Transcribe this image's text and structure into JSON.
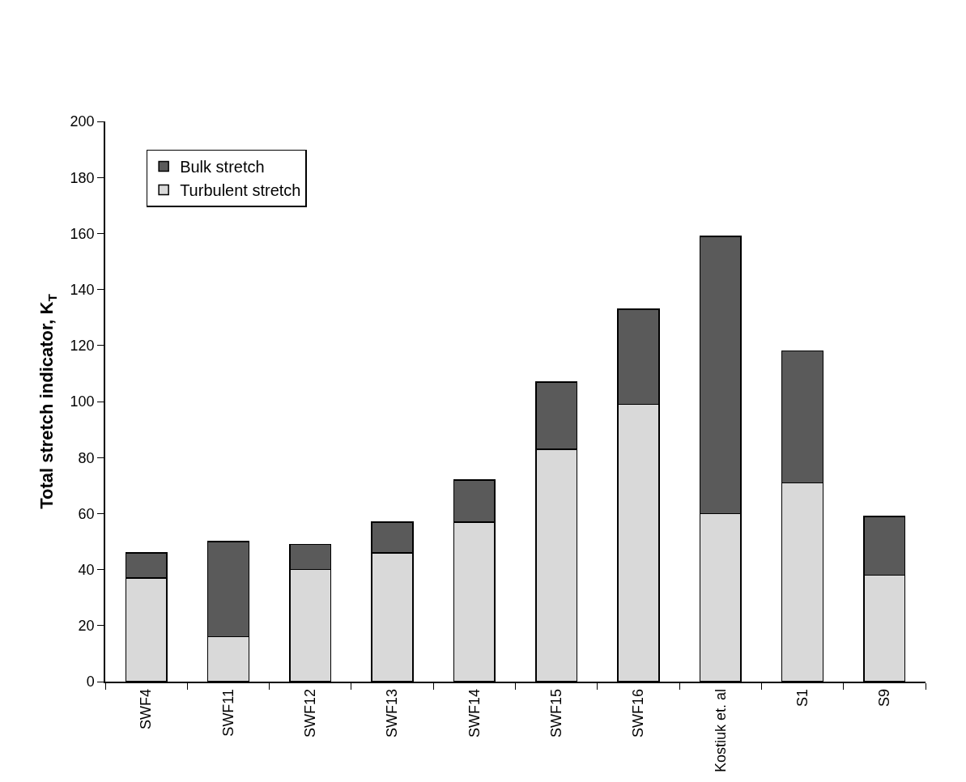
{
  "chart_data": {
    "type": "bar",
    "stacked": true,
    "ylabel": "Total stretch indicator, K$_{T}$",
    "categories": [
      "SWF4",
      "SWF11",
      "SWF12",
      "SWF13",
      "SWF14",
      "SWF15",
      "SWF16",
      "Kostiuk et. al",
      "S1",
      "S9"
    ],
    "series": [
      {
        "name": "Turbulent stretch",
        "color": "#d9d9d9",
        "values": [
          37,
          16,
          40,
          46,
          57,
          83,
          99,
          60,
          71,
          38
        ]
      },
      {
        "name": "Bulk stretch",
        "color": "#5a5a5a",
        "values": [
          9,
          34,
          9,
          11,
          15,
          24,
          34,
          99,
          47,
          21
        ]
      }
    ],
    "ylim": [
      0,
      200
    ],
    "yticks": [
      0,
      20,
      40,
      60,
      80,
      100,
      120,
      140,
      160,
      180,
      200
    ],
    "legend": "top left"
  }
}
